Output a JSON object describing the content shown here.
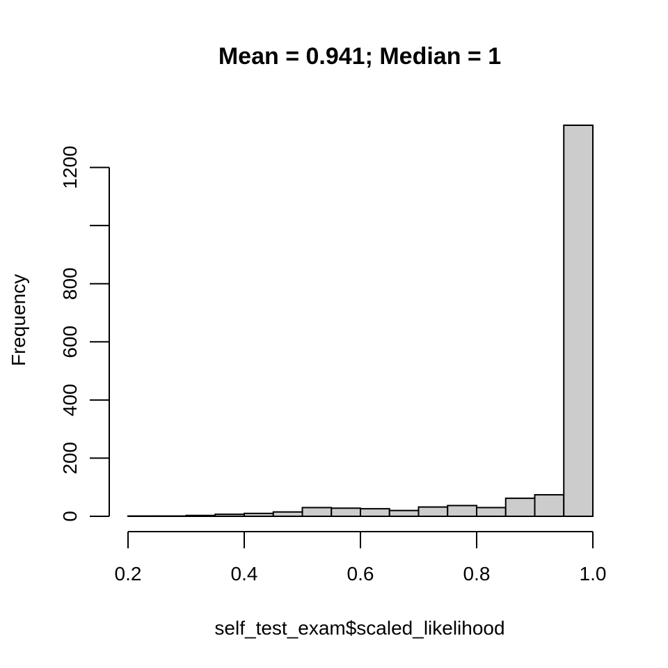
{
  "chart_data": {
    "type": "bar",
    "title": "Mean = 0.941; Median = 1",
    "xlabel": "self_test_exam$scaled_likelihood",
    "ylabel": "Frequency",
    "bin_edges": [
      0.2,
      0.25,
      0.3,
      0.35,
      0.4,
      0.45,
      0.5,
      0.55,
      0.6,
      0.65,
      0.7,
      0.75,
      0.8,
      0.85,
      0.9,
      0.95,
      1.0
    ],
    "values": [
      1,
      1,
      3,
      7,
      10,
      15,
      30,
      28,
      26,
      20,
      32,
      37,
      30,
      62,
      74,
      1345
    ],
    "xlim": [
      0.2,
      1.0
    ],
    "ylim": [
      0,
      1345
    ],
    "x_ticks": [
      0.2,
      0.4,
      0.6,
      0.8,
      1.0
    ],
    "x_tick_labels": [
      "0.2",
      "0.4",
      "0.6",
      "0.8",
      "1.0"
    ],
    "y_ticks": [
      0,
      200,
      400,
      600,
      800,
      1000,
      1200
    ],
    "y_tick_labels": [
      "0",
      "200",
      "400",
      "600",
      "800",
      "",
      "1200"
    ],
    "bar_fill": "#cccccc",
    "bar_stroke": "#000000",
    "grid": false,
    "legend": "none"
  }
}
